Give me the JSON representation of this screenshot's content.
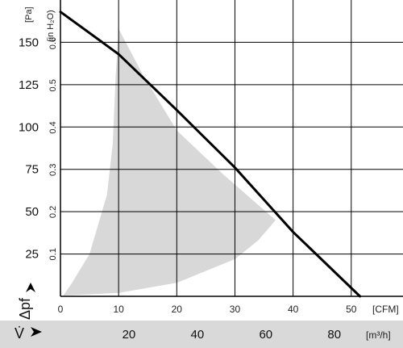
{
  "chart_data": {
    "type": "line",
    "axes": {
      "y_left": {
        "unit_label": "[Pa]",
        "ticks": [
          "25",
          "50",
          "75",
          "100",
          "125",
          "150"
        ],
        "range": [
          0,
          175
        ],
        "symbol": "Δpf"
      },
      "y_right_inner": {
        "unit_label": "(in H₂O)",
        "ticks": [
          "0.1",
          "0.2",
          "0.3",
          "0.4",
          "0.5",
          "0.6"
        ]
      },
      "x_cfm": {
        "unit_label": "[CFM]",
        "ticks": [
          "0",
          "10",
          "20",
          "30",
          "40",
          "50"
        ],
        "range": [
          0,
          58.9
        ]
      },
      "x_m3h": {
        "unit_label": "[m³/h]",
        "ticks": [
          "20",
          "40",
          "60",
          "80"
        ],
        "symbol": "V̇"
      }
    },
    "grid": true,
    "series": [
      {
        "values_unit": "x: CFM, y: Pa",
        "points": [
          [
            0,
            168
          ],
          [
            10,
            143
          ],
          [
            20,
            110
          ],
          [
            30,
            76
          ],
          [
            40,
            38
          ],
          [
            51.5,
            0
          ]
        ],
        "color": "#000000"
      }
    ],
    "operating_region": {
      "color": "#d8d8d8",
      "points": [
        [
          0.5,
          0.5
        ],
        [
          10,
          2
        ],
        [
          20,
          8
        ],
        [
          30,
          22
        ],
        [
          34,
          33
        ],
        [
          37,
          45
        ],
        [
          34,
          54
        ],
        [
          28,
          72
        ],
        [
          20,
          98
        ],
        [
          14,
          132
        ],
        [
          10,
          158
        ],
        [
          9.5,
          130
        ],
        [
          9,
          90
        ],
        [
          8,
          60
        ],
        [
          5,
          25
        ],
        [
          2,
          8
        ],
        [
          0.5,
          0.5
        ]
      ]
    },
    "colors": {
      "bottom_band": "#d9d9d9",
      "axis_arrow": "#000000"
    }
  }
}
